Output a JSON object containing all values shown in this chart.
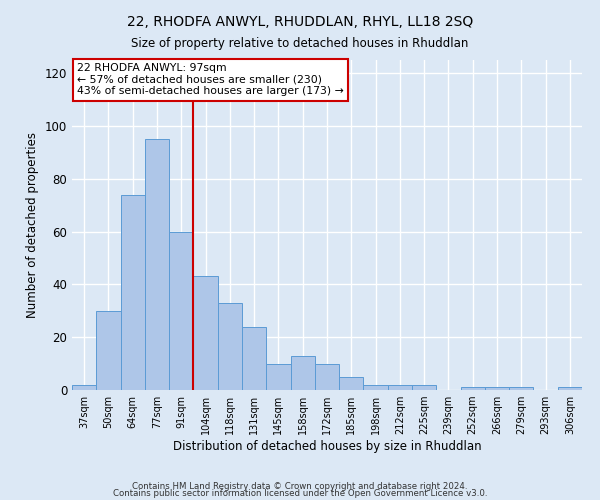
{
  "title": "22, RHODFA ANWYL, RHUDDLAN, RHYL, LL18 2SQ",
  "subtitle": "Size of property relative to detached houses in Rhuddlan",
  "xlabel": "Distribution of detached houses by size in Rhuddlan",
  "ylabel": "Number of detached properties",
  "bar_labels": [
    "37sqm",
    "50sqm",
    "64sqm",
    "77sqm",
    "91sqm",
    "104sqm",
    "118sqm",
    "131sqm",
    "145sqm",
    "158sqm",
    "172sqm",
    "185sqm",
    "198sqm",
    "212sqm",
    "225sqm",
    "239sqm",
    "252sqm",
    "266sqm",
    "279sqm",
    "293sqm",
    "306sqm"
  ],
  "bar_values": [
    2,
    30,
    74,
    95,
    60,
    43,
    33,
    24,
    10,
    13,
    10,
    5,
    2,
    2,
    2,
    0,
    1,
    1,
    1,
    0,
    1
  ],
  "bar_color": "#aec6e8",
  "bar_edge_color": "#5b9bd5",
  "bar_width": 1.0,
  "vline_x": 4.5,
  "vline_color": "#cc0000",
  "ylim": [
    0,
    125
  ],
  "yticks": [
    0,
    20,
    40,
    60,
    80,
    100,
    120
  ],
  "annotation_text": "22 RHODFA ANWYL: 97sqm\n← 57% of detached houses are smaller (230)\n43% of semi-detached houses are larger (173) →",
  "annotation_box_color": "#ffffff",
  "annotation_box_edge": "#cc0000",
  "footer1": "Contains HM Land Registry data © Crown copyright and database right 2024.",
  "footer2": "Contains public sector information licensed under the Open Government Licence v3.0.",
  "bg_color": "#dce8f5",
  "plot_bg_color": "#dce8f5"
}
